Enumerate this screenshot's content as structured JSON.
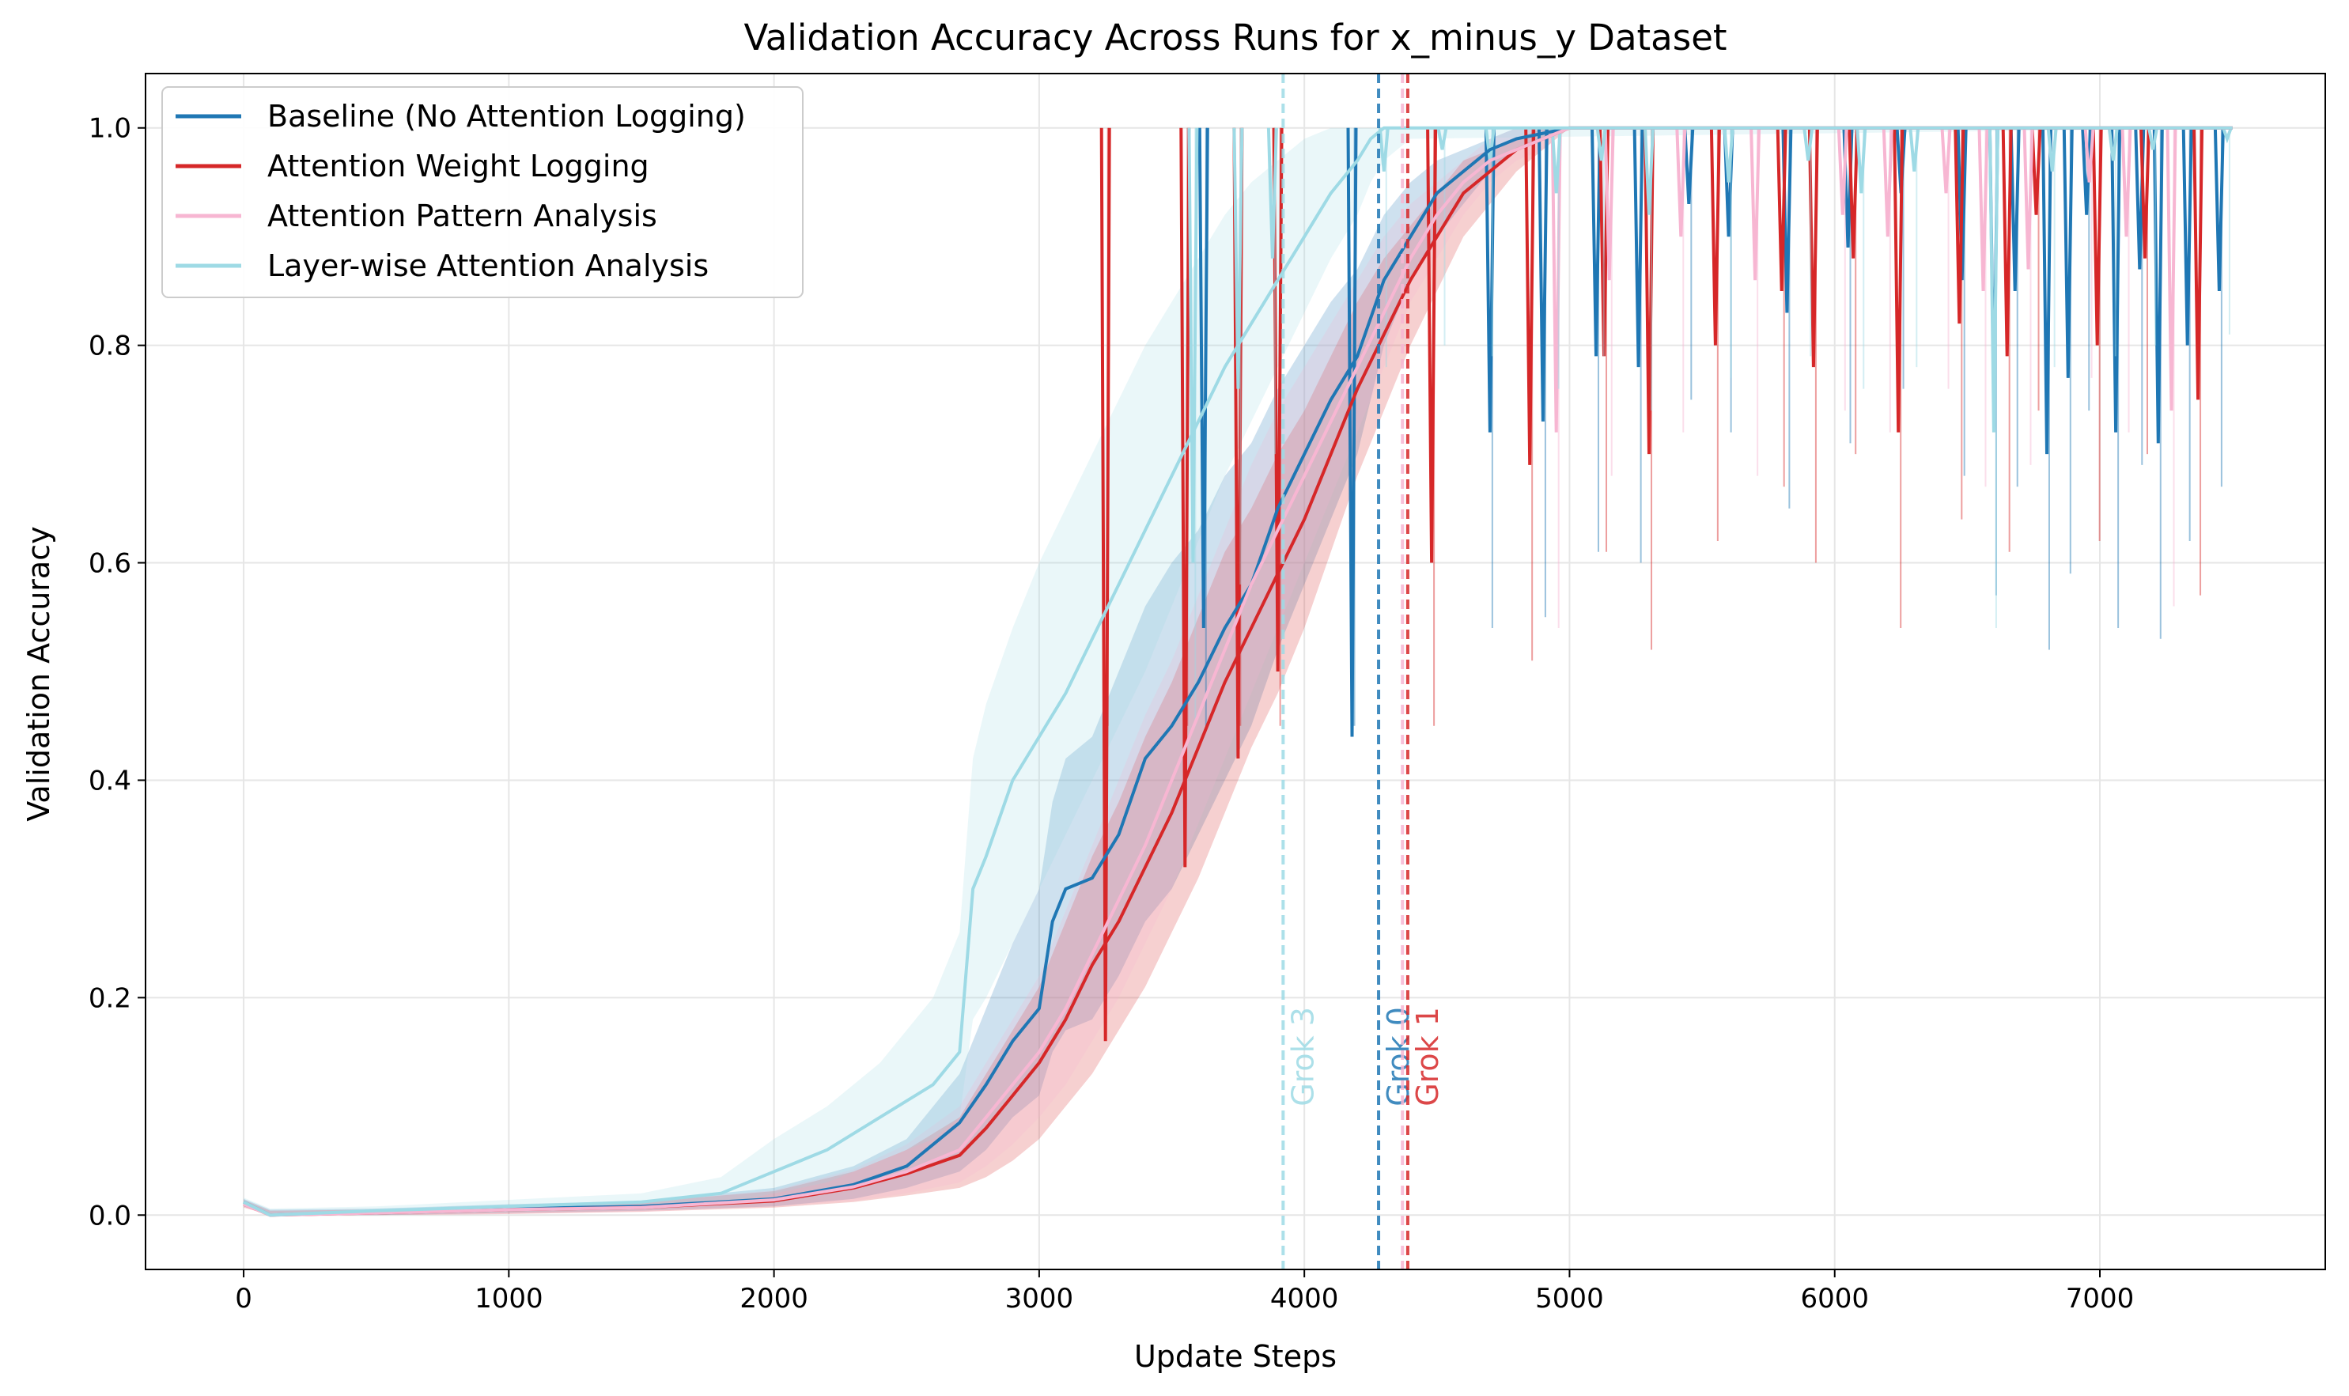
{
  "chart_data": {
    "type": "line",
    "title": "Validation Accuracy Across Runs for x_minus_y Dataset",
    "xlabel": "Update Steps",
    "ylabel": "Validation Accuracy",
    "xlim": [
      -370,
      7850
    ],
    "ylim": [
      -0.05,
      1.05
    ],
    "xticks": [
      0,
      1000,
      2000,
      3000,
      4000,
      5000,
      6000,
      7000
    ],
    "yticks": [
      0.0,
      0.2,
      0.4,
      0.6,
      0.8,
      1.0
    ],
    "xtick_labels": [
      "0",
      "1000",
      "2000",
      "3000",
      "4000",
      "5000",
      "6000",
      "7000"
    ],
    "ytick_labels": [
      "0.0",
      "0.2",
      "0.4",
      "0.6",
      "0.8",
      "1.0"
    ],
    "grid": true,
    "legend_position": "top-left",
    "series": [
      {
        "name": "Baseline (No Attention Logging)",
        "color": "#1f77b4",
        "grok_step": 4280,
        "grok_label": "Grok 0",
        "x": [
          0,
          100,
          500,
          1000,
          1500,
          2000,
          2300,
          2500,
          2700,
          2800,
          2900,
          3000,
          3050,
          3100,
          3200,
          3300,
          3400,
          3500,
          3600,
          3700,
          3800,
          3900,
          4000,
          4100,
          4200,
          4300,
          4400,
          4500,
          4600,
          4700,
          4800,
          5000,
          7500
        ],
        "y": [
          0.012,
          0.0,
          0.003,
          0.006,
          0.008,
          0.015,
          0.028,
          0.045,
          0.085,
          0.12,
          0.16,
          0.19,
          0.27,
          0.3,
          0.31,
          0.35,
          0.42,
          0.45,
          0.49,
          0.54,
          0.58,
          0.65,
          0.7,
          0.75,
          0.79,
          0.86,
          0.9,
          0.94,
          0.96,
          0.98,
          0.99,
          1.0,
          1.0
        ],
        "band_lower": [
          0.008,
          0.0,
          0.0,
          0.002,
          0.004,
          0.008,
          0.015,
          0.025,
          0.04,
          0.06,
          0.09,
          0.11,
          0.15,
          0.17,
          0.18,
          0.22,
          0.27,
          0.3,
          0.35,
          0.4,
          0.45,
          0.52,
          0.58,
          0.64,
          0.7,
          0.8,
          0.86,
          0.9,
          0.93,
          0.96,
          0.98,
          1.0,
          1.0
        ],
        "band_upper": [
          0.015,
          0.005,
          0.006,
          0.01,
          0.013,
          0.025,
          0.045,
          0.07,
          0.13,
          0.19,
          0.25,
          0.3,
          0.38,
          0.42,
          0.44,
          0.5,
          0.56,
          0.6,
          0.63,
          0.68,
          0.71,
          0.76,
          0.8,
          0.84,
          0.87,
          0.92,
          0.95,
          0.97,
          0.98,
          0.99,
          1.0,
          1.0,
          1.0
        ],
        "dips": [
          [
            3620,
            0.54
          ],
          [
            4180,
            0.44
          ],
          [
            4700,
            0.72
          ],
          [
            4900,
            0.73
          ],
          [
            5100,
            0.79
          ],
          [
            5260,
            0.78
          ],
          [
            5450,
            0.93
          ],
          [
            5600,
            0.9
          ],
          [
            5820,
            0.83
          ],
          [
            6050,
            0.89
          ],
          [
            6250,
            0.94
          ],
          [
            6480,
            0.86
          ],
          [
            6600,
            0.75
          ],
          [
            6680,
            0.85
          ],
          [
            6800,
            0.7
          ],
          [
            6880,
            0.77
          ],
          [
            6950,
            0.92
          ],
          [
            7060,
            0.72
          ],
          [
            7150,
            0.87
          ],
          [
            7220,
            0.71
          ],
          [
            7330,
            0.8
          ],
          [
            7450,
            0.85
          ]
        ]
      },
      {
        "name": "Attention Weight Logging",
        "color": "#d62728",
        "grok_step": 4390,
        "grok_label": "Grok 1",
        "x": [
          0,
          100,
          500,
          1000,
          1500,
          2000,
          2300,
          2500,
          2700,
          2800,
          2900,
          3000,
          3100,
          3200,
          3300,
          3400,
          3500,
          3600,
          3700,
          3800,
          3900,
          4000,
          4100,
          4200,
          4300,
          4400,
          4500,
          4600,
          4700,
          4800,
          4900,
          5000,
          7500
        ],
        "y": [
          0.01,
          0.0,
          0.002,
          0.005,
          0.007,
          0.013,
          0.025,
          0.038,
          0.055,
          0.08,
          0.11,
          0.14,
          0.18,
          0.23,
          0.27,
          0.32,
          0.37,
          0.43,
          0.49,
          0.54,
          0.59,
          0.64,
          0.7,
          0.76,
          0.81,
          0.86,
          0.9,
          0.94,
          0.96,
          0.98,
          0.99,
          1.0,
          1.0
        ],
        "band_lower": [
          0.007,
          0.0,
          0.0,
          0.001,
          0.003,
          0.007,
          0.012,
          0.018,
          0.025,
          0.035,
          0.05,
          0.07,
          0.1,
          0.13,
          0.17,
          0.21,
          0.26,
          0.31,
          0.37,
          0.43,
          0.48,
          0.54,
          0.61,
          0.68,
          0.74,
          0.8,
          0.85,
          0.9,
          0.93,
          0.96,
          0.98,
          1.0,
          1.0
        ],
        "band_upper": [
          0.014,
          0.004,
          0.005,
          0.009,
          0.012,
          0.022,
          0.04,
          0.06,
          0.09,
          0.13,
          0.17,
          0.21,
          0.27,
          0.33,
          0.38,
          0.44,
          0.49,
          0.55,
          0.61,
          0.65,
          0.7,
          0.74,
          0.79,
          0.84,
          0.88,
          0.91,
          0.94,
          0.97,
          0.98,
          0.99,
          1.0,
          1.0,
          1.0
        ],
        "dips": [
          [
            3250,
            0.16
          ],
          [
            3550,
            0.32
          ],
          [
            3750,
            0.42
          ],
          [
            3900,
            0.5
          ],
          [
            4480,
            0.6
          ],
          [
            4850,
            0.69
          ],
          [
            5130,
            0.79
          ],
          [
            5300,
            0.7
          ],
          [
            5550,
            0.8
          ],
          [
            5800,
            0.85
          ],
          [
            5920,
            0.78
          ],
          [
            6070,
            0.88
          ],
          [
            6240,
            0.72
          ],
          [
            6470,
            0.82
          ],
          [
            6650,
            0.79
          ],
          [
            6760,
            0.92
          ],
          [
            6990,
            0.8
          ],
          [
            7170,
            0.88
          ],
          [
            7370,
            0.75
          ]
        ]
      },
      {
        "name": "Attention Pattern Analysis",
        "color": "#f7b6d2",
        "grok_step": 4370,
        "grok_label": "",
        "x": [
          0,
          100,
          500,
          1000,
          1500,
          2000,
          2300,
          2500,
          2700,
          2800,
          2900,
          3000,
          3100,
          3200,
          3300,
          3400,
          3500,
          3600,
          3700,
          3800,
          3900,
          4000,
          4100,
          4200,
          4300,
          4400,
          4500,
          4600,
          4700,
          4800,
          4900,
          5000,
          7500
        ],
        "y": [
          0.01,
          0.0,
          0.002,
          0.005,
          0.007,
          0.014,
          0.026,
          0.04,
          0.06,
          0.09,
          0.12,
          0.15,
          0.19,
          0.24,
          0.29,
          0.34,
          0.4,
          0.46,
          0.52,
          0.58,
          0.63,
          0.68,
          0.73,
          0.78,
          0.83,
          0.88,
          0.92,
          0.95,
          0.97,
          0.98,
          0.99,
          1.0,
          1.0
        ],
        "band_lower": [
          0.007,
          0.0,
          0.0,
          0.001,
          0.003,
          0.008,
          0.013,
          0.02,
          0.03,
          0.045,
          0.065,
          0.09,
          0.12,
          0.16,
          0.2,
          0.25,
          0.3,
          0.36,
          0.42,
          0.48,
          0.54,
          0.6,
          0.66,
          0.72,
          0.78,
          0.84,
          0.88,
          0.92,
          0.95,
          0.97,
          0.98,
          1.0,
          1.0
        ],
        "band_upper": [
          0.014,
          0.004,
          0.005,
          0.009,
          0.012,
          0.023,
          0.042,
          0.065,
          0.1,
          0.14,
          0.18,
          0.22,
          0.28,
          0.34,
          0.4,
          0.46,
          0.51,
          0.57,
          0.63,
          0.69,
          0.74,
          0.78,
          0.82,
          0.86,
          0.9,
          0.93,
          0.95,
          0.97,
          0.99,
          1.0,
          1.0,
          1.0,
          1.0
        ],
        "dips": [
          [
            4950,
            0.72
          ],
          [
            5150,
            0.86
          ],
          [
            5420,
            0.9
          ],
          [
            5700,
            0.86
          ],
          [
            6030,
            0.92
          ],
          [
            6200,
            0.9
          ],
          [
            6420,
            0.94
          ],
          [
            6560,
            0.85
          ],
          [
            6730,
            0.87
          ],
          [
            6960,
            0.95
          ],
          [
            7100,
            0.9
          ],
          [
            7270,
            0.74
          ]
        ]
      },
      {
        "name": "Layer-wise Attention Analysis",
        "color": "#9edae5",
        "grok_step": 3920,
        "grok_label": "Grok 3",
        "x": [
          0,
          100,
          500,
          1000,
          1500,
          1800,
          2000,
          2200,
          2400,
          2600,
          2700,
          2750,
          2800,
          2900,
          3000,
          3100,
          3200,
          3300,
          3400,
          3500,
          3600,
          3700,
          3800,
          3900,
          4000,
          4100,
          4200,
          4250,
          4300,
          4400,
          7500
        ],
        "y": [
          0.012,
          0.0,
          0.004,
          0.008,
          0.012,
          0.02,
          0.04,
          0.06,
          0.09,
          0.12,
          0.15,
          0.3,
          0.33,
          0.4,
          0.44,
          0.48,
          0.53,
          0.58,
          0.63,
          0.68,
          0.73,
          0.78,
          0.82,
          0.86,
          0.9,
          0.94,
          0.97,
          0.99,
          1.0,
          1.0,
          1.0
        ],
        "band_lower": [
          0.008,
          0.0,
          0.0,
          0.003,
          0.006,
          0.01,
          0.02,
          0.03,
          0.05,
          0.07,
          0.09,
          0.18,
          0.2,
          0.25,
          0.3,
          0.35,
          0.4,
          0.45,
          0.5,
          0.56,
          0.62,
          0.68,
          0.73,
          0.78,
          0.83,
          0.88,
          0.92,
          0.95,
          0.97,
          0.99,
          1.0
        ],
        "band_upper": [
          0.016,
          0.006,
          0.008,
          0.014,
          0.02,
          0.035,
          0.07,
          0.1,
          0.14,
          0.2,
          0.26,
          0.42,
          0.47,
          0.54,
          0.6,
          0.65,
          0.7,
          0.75,
          0.8,
          0.84,
          0.88,
          0.92,
          0.95,
          0.97,
          0.99,
          1.0,
          1.0,
          1.0,
          1.0,
          1.0,
          1.0
        ],
        "dips": [
          [
            3580,
            0.6
          ],
          [
            3750,
            0.76
          ],
          [
            3880,
            0.88
          ],
          [
            4300,
            0.96
          ],
          [
            4520,
            0.98
          ],
          [
            4700,
            0.97
          ],
          [
            4950,
            0.94
          ],
          [
            5120,
            0.97
          ],
          [
            5300,
            0.92
          ],
          [
            5600,
            0.95
          ],
          [
            5900,
            0.97
          ],
          [
            6100,
            0.94
          ],
          [
            6300,
            0.96
          ],
          [
            6600,
            0.72
          ],
          [
            6820,
            0.96
          ],
          [
            7050,
            0.97
          ],
          [
            7200,
            0.98
          ],
          [
            7480,
            0.99
          ]
        ]
      }
    ]
  }
}
